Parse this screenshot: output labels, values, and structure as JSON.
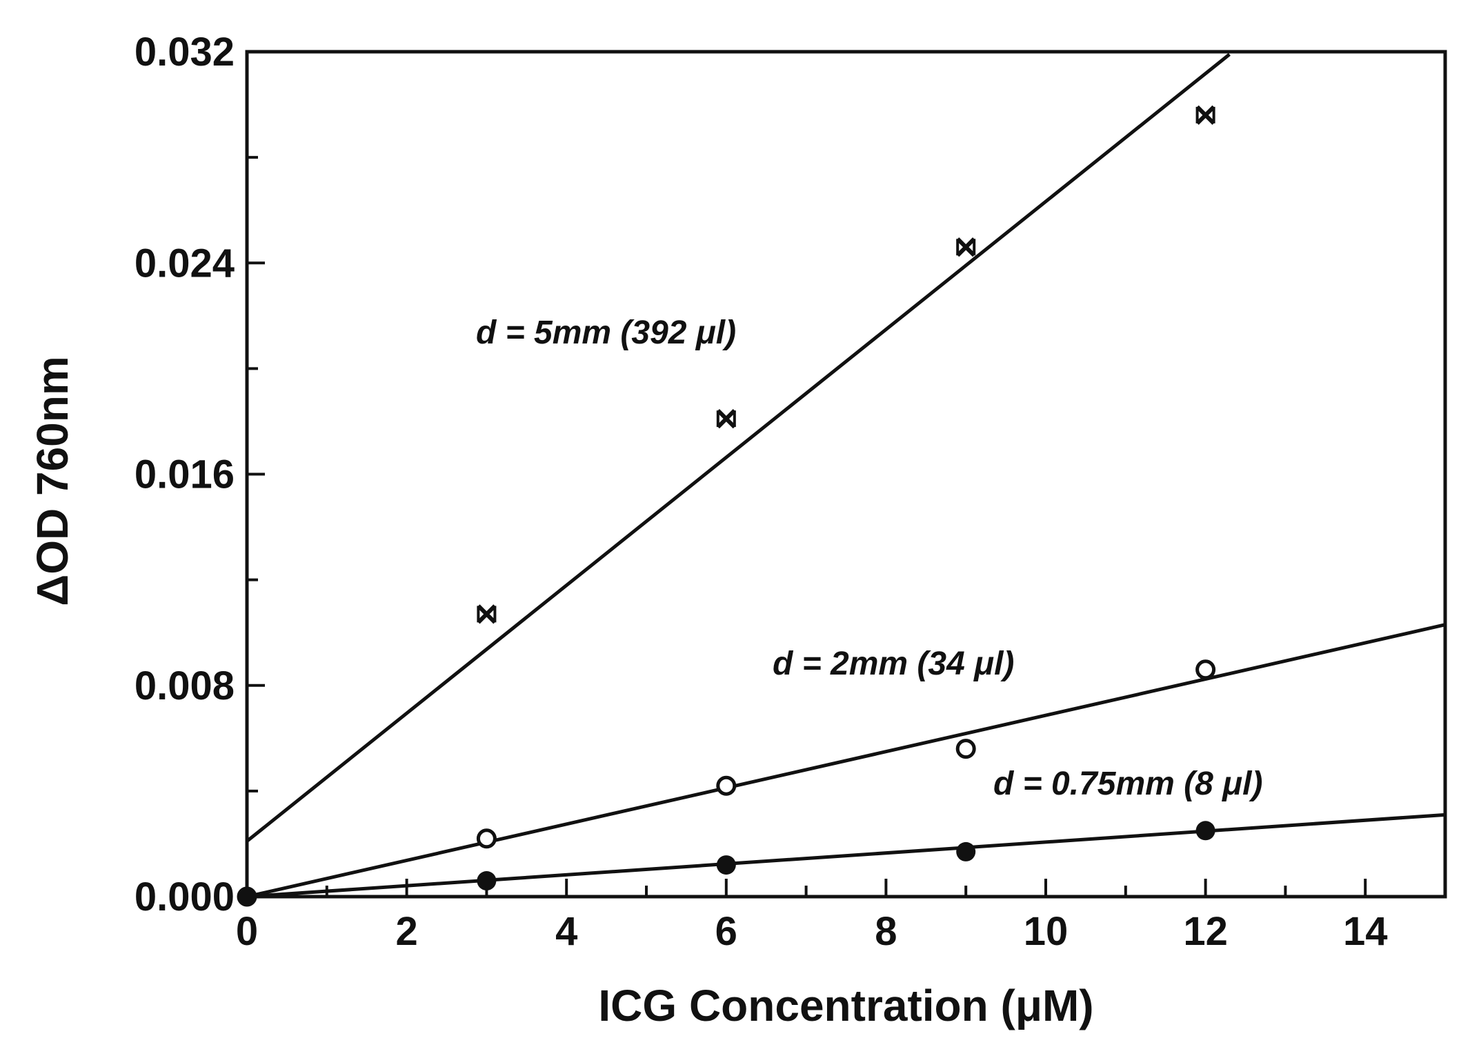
{
  "chart_data": {
    "type": "scatter",
    "title": "",
    "xlabel": "ICG Concentration (μM)",
    "ylabel": "ΔOD 760nm",
    "xlim": [
      0,
      15
    ],
    "ylim": [
      0,
      0.032
    ],
    "x_ticks": [
      "0",
      "2",
      "4",
      "6",
      "8",
      "10",
      "12",
      "14"
    ],
    "y_ticks": [
      "0.000",
      "0.008",
      "0.016",
      "0.024",
      "0.032"
    ],
    "grid": false,
    "legend": "none",
    "series": [
      {
        "label": "d = 5mm (392 μl)",
        "marker": "x",
        "x": [
          3,
          6,
          9,
          12
        ],
        "y": [
          0.0107,
          0.0181,
          0.0246,
          0.0296
        ],
        "fit": {
          "x": [
            0,
            12.3
          ],
          "y": [
            0.0021,
            0.0319
          ]
        }
      },
      {
        "label": "d = 2mm (34 μl)",
        "marker": "open-circle",
        "x": [
          0,
          3,
          6,
          9,
          12
        ],
        "y": [
          0.0,
          0.0022,
          0.0042,
          0.0056,
          0.0086
        ],
        "fit": {
          "x": [
            0,
            15
          ],
          "y": [
            0.0,
            0.0103
          ]
        }
      },
      {
        "label": "d = 0.75mm (8 μl)",
        "marker": "filled-circle",
        "x": [
          0,
          3,
          6,
          9,
          12
        ],
        "y": [
          0.0,
          0.0006,
          0.0012,
          0.0017,
          0.0025
        ],
        "fit": {
          "x": [
            0,
            15
          ],
          "y": [
            0.0,
            0.0031
          ]
        }
      }
    ]
  }
}
